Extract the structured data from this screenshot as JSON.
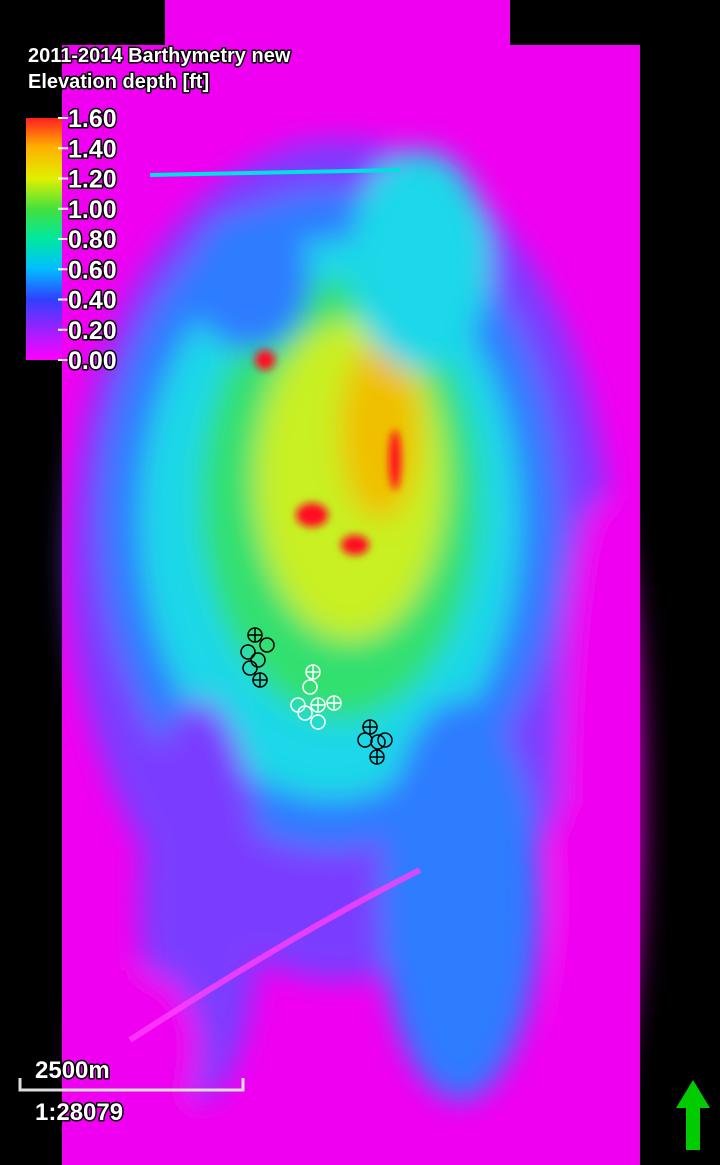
{
  "map": {
    "title": "2011-2014 Barthymetry new",
    "subtitle": "Elevation depth [ft]"
  },
  "colorbar": {
    "lim": [
      0,
      1.6
    ],
    "ticks": [
      {
        "value": 1.6,
        "label": "1.60"
      },
      {
        "value": 1.4,
        "label": "1.40"
      },
      {
        "value": 1.2,
        "label": "1.20"
      },
      {
        "value": 1.0,
        "label": "1.00"
      },
      {
        "value": 0.8,
        "label": "0.80"
      },
      {
        "value": 0.6,
        "label": "0.60"
      },
      {
        "value": 0.4,
        "label": "0.40"
      },
      {
        "value": 0.2,
        "label": "0.20"
      },
      {
        "value": 0,
        "label": "0.00"
      }
    ]
  },
  "scale_bar": {
    "label": "2500m",
    "ratio": "1:28079"
  }
}
